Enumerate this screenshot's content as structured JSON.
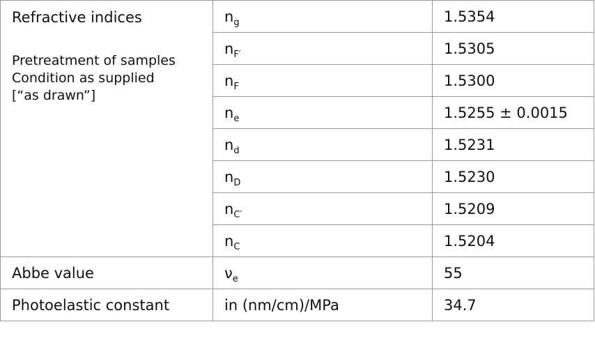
{
  "table": {
    "group": {
      "label": "Refractive indices",
      "note": [
        "Pretreatment of samples",
        "Condition as supplied",
        "[“as drawn”]"
      ],
      "rows": [
        {
          "base": "n",
          "sub": "g",
          "value": "1.5354"
        },
        {
          "base": "n",
          "sub": "F′",
          "value": "1.5305"
        },
        {
          "base": "n",
          "sub": "F",
          "value": "1.5300"
        },
        {
          "base": "n",
          "sub": "e",
          "value": "1.5255 ± 0.0015"
        },
        {
          "base": "n",
          "sub": "d",
          "value": "1.5231"
        },
        {
          "base": "n",
          "sub": "D",
          "value": "1.5230"
        },
        {
          "base": "n",
          "sub": "C′",
          "value": "1.5209"
        },
        {
          "base": "n",
          "sub": "C",
          "value": "1.5204"
        }
      ]
    },
    "abbe": {
      "label": "Abbe value",
      "base": "ν",
      "sub": "e",
      "value": "55"
    },
    "photoelastic": {
      "label": "Photoelastic constant",
      "unit": "in (nm/cm)/MPa",
      "value": "34.7"
    }
  }
}
